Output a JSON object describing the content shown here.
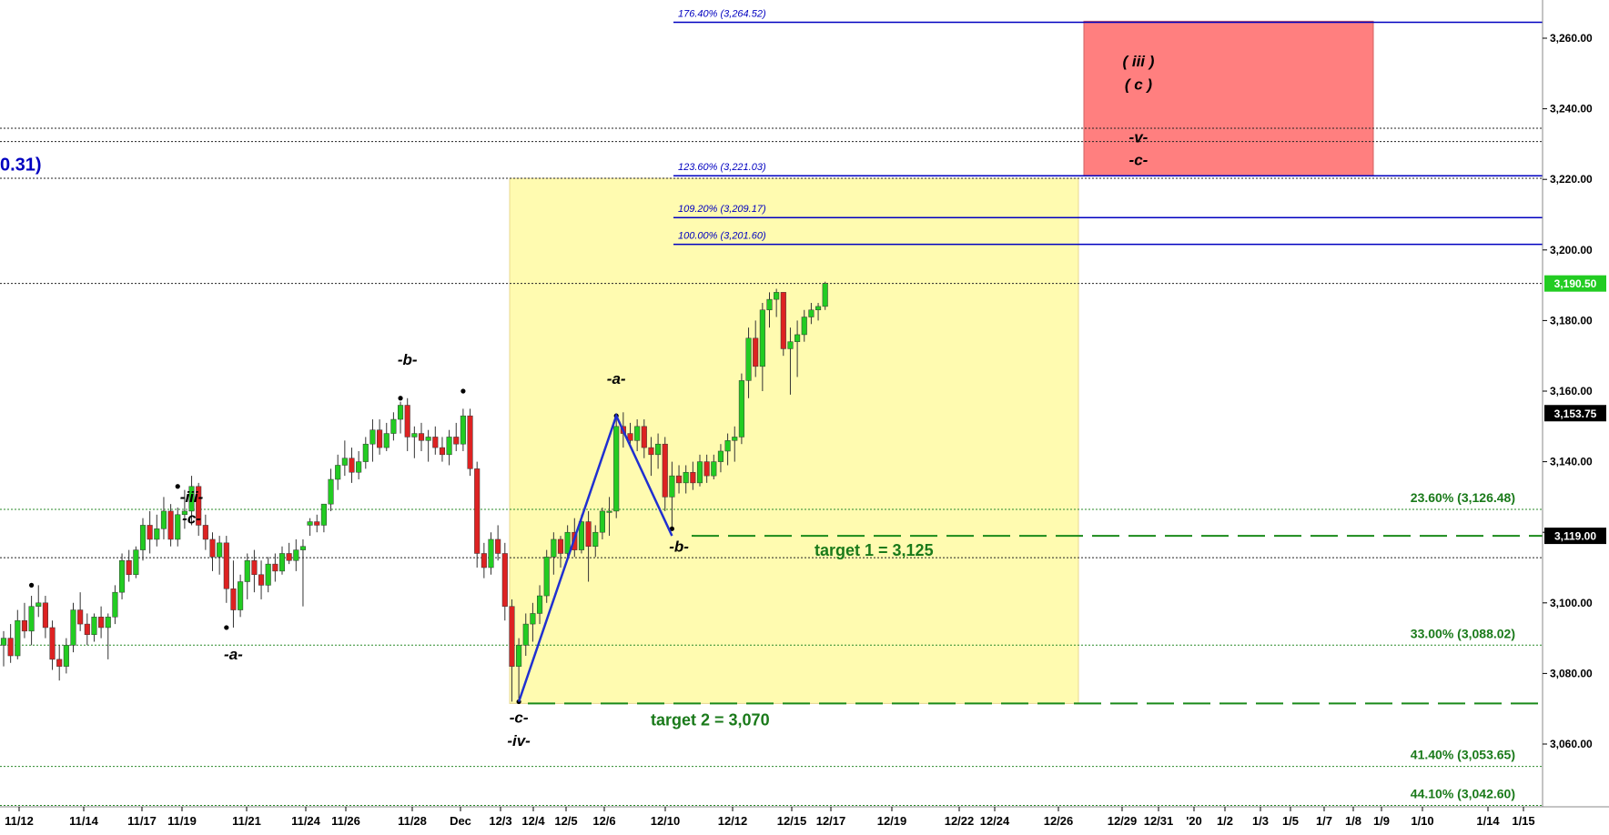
{
  "chart_data": {
    "type": "candlestick",
    "x_labels": [
      "11/12",
      "11/14",
      "11/17",
      "11/19",
      "11/21",
      "11/24",
      "11/26",
      "11/28",
      "Dec",
      "12/3",
      "12/4",
      "12/5",
      "12/6",
      "12/10",
      "12/12",
      "12/15",
      "12/17",
      "12/19",
      "12/22",
      "12/24",
      "12/26",
      "12/29",
      "12/31",
      "'20",
      "1/2",
      "1/3",
      "1/5",
      "1/7",
      "1/8",
      "1/9",
      "1/10",
      "1/14",
      "1/15"
    ],
    "ylim": [
      3045,
      3275
    ],
    "y_ticks": [
      "3,060.00",
      "3,080.00",
      "3,100.00",
      "3,120.00",
      "3,140.00",
      "3,160.00",
      "3,180.00",
      "3,200.00",
      "3,220.00",
      "3,240.00",
      "3,260.00"
    ],
    "y_tick_values": [
      3060,
      3080,
      3100,
      3120,
      3140,
      3160,
      3180,
      3200,
      3220,
      3240,
      3260
    ],
    "price_badges": [
      {
        "label": "3,190.50",
        "value": 3190.5,
        "color": "#22cc22"
      },
      {
        "label": "3,153.75",
        "value": 3153.75,
        "color": "#000000"
      },
      {
        "label": "3,119.00",
        "value": 3119.0,
        "color": "#000000"
      }
    ],
    "blue_fib_levels": [
      {
        "label": "176.40% (3,264.52)",
        "value": 3264.52
      },
      {
        "label": "123.60% (3,221.03)",
        "value": 3221.03
      },
      {
        "label": "109.20% (3,209.17)",
        "value": 3209.17
      },
      {
        "label": "100.00% (3,201.60)",
        "value": 3201.6
      }
    ],
    "green_fib_levels": [
      {
        "label": "23.60% (3,126.48)",
        "value": 3126.48
      },
      {
        "label": "33.00% (3,088.02)",
        "value": 3088.02
      },
      {
        "label": "41.40% (3,053.65)",
        "value": 3053.65
      },
      {
        "label": "44.10% (3,042.60)",
        "value": 3042.6
      }
    ],
    "black_dotted_levels": [
      3234.5,
      3230.7,
      3220.3,
      3190.5,
      3112.8
    ],
    "left_edge_label": "0.31)",
    "targets": [
      {
        "label": "target 1 = 3,125",
        "value": 3119.0
      },
      {
        "label": "target 2 = 3,070",
        "value": 3071.5
      }
    ],
    "wave_labels": [
      {
        "text": "-iii-",
        "x_bar": 27,
        "value": 3128.5
      },
      {
        "text": "-c-",
        "x_bar": 27,
        "value": 3122.5
      },
      {
        "text": "-a-",
        "x_bar": 33,
        "value": 3084
      },
      {
        "text": "-b-",
        "x_bar": 58,
        "value": 3167.5
      },
      {
        "text": "-a-",
        "x_bar": 88,
        "value": 3162
      },
      {
        "text": "-c-",
        "x_bar": 74,
        "value": 3066
      },
      {
        "text": "-iv-",
        "x_bar": 74,
        "value": 3059.5
      },
      {
        "text": "-b-",
        "x_bar": 97,
        "value": 3114.5
      },
      {
        "text": "( iii )",
        "x_bar": 163,
        "value": 3252
      },
      {
        "text": "( c )",
        "x_bar": 163,
        "value": 3245.5
      },
      {
        "text": "-v-",
        "x_bar": 163,
        "value": 3230.5
      },
      {
        "text": "-c-",
        "x_bar": 163,
        "value": 3224
      }
    ],
    "candles": [
      {
        "o": 3088,
        "h": 3092,
        "l": 3082,
        "c": 3090
      },
      {
        "o": 3090,
        "h": 3094,
        "l": 3083,
        "c": 3085
      },
      {
        "o": 3085,
        "h": 3098,
        "l": 3084,
        "c": 3095
      },
      {
        "o": 3095,
        "h": 3100,
        "l": 3090,
        "c": 3092
      },
      {
        "o": 3092,
        "h": 3102,
        "l": 3088,
        "c": 3099
      },
      {
        "o": 3099,
        "h": 3105,
        "l": 3096,
        "c": 3100
      },
      {
        "o": 3100,
        "h": 3102,
        "l": 3090,
        "c": 3093
      },
      {
        "o": 3093,
        "h": 3095,
        "l": 3081,
        "c": 3084
      },
      {
        "o": 3084,
        "h": 3088,
        "l": 3078,
        "c": 3082
      },
      {
        "o": 3082,
        "h": 3090,
        "l": 3080,
        "c": 3088
      },
      {
        "o": 3088,
        "h": 3100,
        "l": 3086,
        "c": 3098
      },
      {
        "o": 3098,
        "h": 3103,
        "l": 3092,
        "c": 3094
      },
      {
        "o": 3094,
        "h": 3097,
        "l": 3088,
        "c": 3091
      },
      {
        "o": 3091,
        "h": 3097,
        "l": 3089,
        "c": 3096
      },
      {
        "o": 3096,
        "h": 3099,
        "l": 3090,
        "c": 3093
      },
      {
        "o": 3093,
        "h": 3097,
        "l": 3084,
        "c": 3096
      },
      {
        "o": 3096,
        "h": 3105,
        "l": 3094,
        "c": 3103
      },
      {
        "o": 3103,
        "h": 3114,
        "l": 3101,
        "c": 3112
      },
      {
        "o": 3112,
        "h": 3115,
        "l": 3106,
        "c": 3108
      },
      {
        "o": 3108,
        "h": 3116,
        "l": 3107,
        "c": 3115
      },
      {
        "o": 3115,
        "h": 3124,
        "l": 3112,
        "c": 3122
      },
      {
        "o": 3122,
        "h": 3126,
        "l": 3114,
        "c": 3118
      },
      {
        "o": 3118,
        "h": 3125,
        "l": 3116,
        "c": 3121
      },
      {
        "o": 3121,
        "h": 3130,
        "l": 3118,
        "c": 3126
      },
      {
        "o": 3126,
        "h": 3128,
        "l": 3116,
        "c": 3118
      },
      {
        "o": 3118,
        "h": 3127,
        "l": 3116,
        "c": 3125
      },
      {
        "o": 3125,
        "h": 3132,
        "l": 3121,
        "c": 3126
      },
      {
        "o": 3126,
        "h": 3136,
        "l": 3122,
        "c": 3133
      },
      {
        "o": 3133,
        "h": 3134,
        "l": 3119,
        "c": 3122
      },
      {
        "o": 3122,
        "h": 3125,
        "l": 3115,
        "c": 3118
      },
      {
        "o": 3118,
        "h": 3120,
        "l": 3109,
        "c": 3113
      },
      {
        "o": 3113,
        "h": 3119,
        "l": 3108,
        "c": 3117
      },
      {
        "o": 3117,
        "h": 3119,
        "l": 3100,
        "c": 3104
      },
      {
        "o": 3104,
        "h": 3112,
        "l": 3093,
        "c": 3098
      },
      {
        "o": 3098,
        "h": 3108,
        "l": 3096,
        "c": 3106
      },
      {
        "o": 3106,
        "h": 3114,
        "l": 3101,
        "c": 3112
      },
      {
        "o": 3112,
        "h": 3115,
        "l": 3103,
        "c": 3108
      },
      {
        "o": 3108,
        "h": 3112,
        "l": 3101,
        "c": 3105
      },
      {
        "o": 3105,
        "h": 3113,
        "l": 3103,
        "c": 3111
      },
      {
        "o": 3111,
        "h": 3114,
        "l": 3106,
        "c": 3109
      },
      {
        "o": 3109,
        "h": 3116,
        "l": 3108,
        "c": 3114
      },
      {
        "o": 3114,
        "h": 3117,
        "l": 3111,
        "c": 3112
      },
      {
        "o": 3112,
        "h": 3118,
        "l": 3109,
        "c": 3115
      },
      {
        "o": 3115,
        "h": 3118,
        "l": 3099,
        "c": 3116
      },
      {
        "o": 3122,
        "h": 3124,
        "l": 3119,
        "c": 3123
      },
      {
        "o": 3123,
        "h": 3125,
        "l": 3120,
        "c": 3122
      },
      {
        "o": 3122,
        "h": 3128,
        "l": 3120,
        "c": 3128
      },
      {
        "o": 3128,
        "h": 3138,
        "l": 3126,
        "c": 3135
      },
      {
        "o": 3135,
        "h": 3142,
        "l": 3132,
        "c": 3139
      },
      {
        "o": 3139,
        "h": 3146,
        "l": 3136,
        "c": 3141
      },
      {
        "o": 3141,
        "h": 3144,
        "l": 3134,
        "c": 3137
      },
      {
        "o": 3137,
        "h": 3143,
        "l": 3135,
        "c": 3140
      },
      {
        "o": 3140,
        "h": 3147,
        "l": 3138,
        "c": 3145
      },
      {
        "o": 3145,
        "h": 3152,
        "l": 3140,
        "c": 3149
      },
      {
        "o": 3149,
        "h": 3152,
        "l": 3142,
        "c": 3144
      },
      {
        "o": 3144,
        "h": 3151,
        "l": 3143,
        "c": 3148
      },
      {
        "o": 3148,
        "h": 3154,
        "l": 3146,
        "c": 3152
      },
      {
        "o": 3152,
        "h": 3157,
        "l": 3148,
        "c": 3156
      },
      {
        "o": 3156,
        "h": 3158,
        "l": 3143,
        "c": 3147
      },
      {
        "o": 3147,
        "h": 3150,
        "l": 3141,
        "c": 3148
      },
      {
        "o": 3148,
        "h": 3151,
        "l": 3143,
        "c": 3146
      },
      {
        "o": 3146,
        "h": 3149,
        "l": 3140,
        "c": 3147
      },
      {
        "o": 3147,
        "h": 3150,
        "l": 3142,
        "c": 3144
      },
      {
        "o": 3144,
        "h": 3147,
        "l": 3140,
        "c": 3142
      },
      {
        "o": 3142,
        "h": 3149,
        "l": 3139,
        "c": 3147
      },
      {
        "o": 3147,
        "h": 3151,
        "l": 3143,
        "c": 3145
      },
      {
        "o": 3145,
        "h": 3155,
        "l": 3143,
        "c": 3153
      },
      {
        "o": 3153,
        "h": 3155,
        "l": 3136,
        "c": 3138
      },
      {
        "o": 3138,
        "h": 3140,
        "l": 3110,
        "c": 3114
      },
      {
        "o": 3114,
        "h": 3117,
        "l": 3107,
        "c": 3110
      },
      {
        "o": 3110,
        "h": 3120,
        "l": 3108,
        "c": 3118
      },
      {
        "o": 3118,
        "h": 3122,
        "l": 3112,
        "c": 3114
      },
      {
        "o": 3114,
        "h": 3117,
        "l": 3095,
        "c": 3099
      },
      {
        "o": 3099,
        "h": 3101,
        "l": 3072,
        "c": 3082
      },
      {
        "o": 3082,
        "h": 3090,
        "l": 3072,
        "c": 3088
      },
      {
        "o": 3088,
        "h": 3097,
        "l": 3085,
        "c": 3094
      },
      {
        "o": 3094,
        "h": 3100,
        "l": 3089,
        "c": 3097
      },
      {
        "o": 3097,
        "h": 3105,
        "l": 3094,
        "c": 3102
      },
      {
        "o": 3102,
        "h": 3115,
        "l": 3100,
        "c": 3113
      },
      {
        "o": 3113,
        "h": 3120,
        "l": 3108,
        "c": 3118
      },
      {
        "o": 3118,
        "h": 3119,
        "l": 3110,
        "c": 3114
      },
      {
        "o": 3114,
        "h": 3122,
        "l": 3112,
        "c": 3120
      },
      {
        "o": 3120,
        "h": 3124,
        "l": 3113,
        "c": 3115
      },
      {
        "o": 3115,
        "h": 3125,
        "l": 3114,
        "c": 3123
      },
      {
        "o": 3123,
        "h": 3126,
        "l": 3106,
        "c": 3116
      },
      {
        "o": 3116,
        "h": 3122,
        "l": 3113,
        "c": 3120
      },
      {
        "o": 3120,
        "h": 3127,
        "l": 3118,
        "c": 3126
      },
      {
        "o": 3126,
        "h": 3130,
        "l": 3119,
        "c": 3126
      },
      {
        "o": 3126,
        "h": 3153,
        "l": 3124,
        "c": 3150
      },
      {
        "o": 3150,
        "h": 3154,
        "l": 3144,
        "c": 3148
      },
      {
        "o": 3148,
        "h": 3151,
        "l": 3144,
        "c": 3146
      },
      {
        "o": 3146,
        "h": 3152,
        "l": 3143,
        "c": 3150
      },
      {
        "o": 3150,
        "h": 3152,
        "l": 3141,
        "c": 3144
      },
      {
        "o": 3144,
        "h": 3147,
        "l": 3136,
        "c": 3142
      },
      {
        "o": 3142,
        "h": 3148,
        "l": 3138,
        "c": 3145
      },
      {
        "o": 3145,
        "h": 3147,
        "l": 3126,
        "c": 3130
      },
      {
        "o": 3130,
        "h": 3140,
        "l": 3121,
        "c": 3136
      },
      {
        "o": 3136,
        "h": 3139,
        "l": 3131,
        "c": 3134
      },
      {
        "o": 3134,
        "h": 3139,
        "l": 3131,
        "c": 3137
      },
      {
        "o": 3137,
        "h": 3140,
        "l": 3132,
        "c": 3134
      },
      {
        "o": 3134,
        "h": 3142,
        "l": 3133,
        "c": 3140
      },
      {
        "o": 3140,
        "h": 3142,
        "l": 3134,
        "c": 3136
      },
      {
        "o": 3136,
        "h": 3142,
        "l": 3135,
        "c": 3140
      },
      {
        "o": 3140,
        "h": 3145,
        "l": 3137,
        "c": 3143
      },
      {
        "o": 3143,
        "h": 3148,
        "l": 3139,
        "c": 3146
      },
      {
        "o": 3146,
        "h": 3150,
        "l": 3140,
        "c": 3147
      },
      {
        "o": 3147,
        "h": 3165,
        "l": 3145,
        "c": 3163
      },
      {
        "o": 3163,
        "h": 3178,
        "l": 3158,
        "c": 3175
      },
      {
        "o": 3175,
        "h": 3180,
        "l": 3164,
        "c": 3167
      },
      {
        "o": 3167,
        "h": 3185,
        "l": 3160,
        "c": 3183
      },
      {
        "o": 3183,
        "h": 3188,
        "l": 3178,
        "c": 3186
      },
      {
        "o": 3186,
        "h": 3189,
        "l": 3181,
        "c": 3188
      },
      {
        "o": 3188,
        "h": 3188,
        "l": 3170,
        "c": 3172
      },
      {
        "o": 3172,
        "h": 3178,
        "l": 3159,
        "c": 3174
      },
      {
        "o": 3174,
        "h": 3180,
        "l": 3164,
        "c": 3176
      },
      {
        "o": 3176,
        "h": 3183,
        "l": 3174,
        "c": 3181
      },
      {
        "o": 3181,
        "h": 3185,
        "l": 3179,
        "c": 3183
      },
      {
        "o": 3183,
        "h": 3185,
        "l": 3180,
        "c": 3184
      },
      {
        "o": 3184,
        "h": 3191,
        "l": 3183,
        "c": 3190.5
      }
    ],
    "colors": {
      "up": "#22cc22",
      "down": "#dd2222",
      "fib_blue": "#0000c0",
      "fib_green": "#1a7a1a",
      "yellow_zone": "#fffbb0",
      "red_zone": "#ff7f7f"
    }
  }
}
